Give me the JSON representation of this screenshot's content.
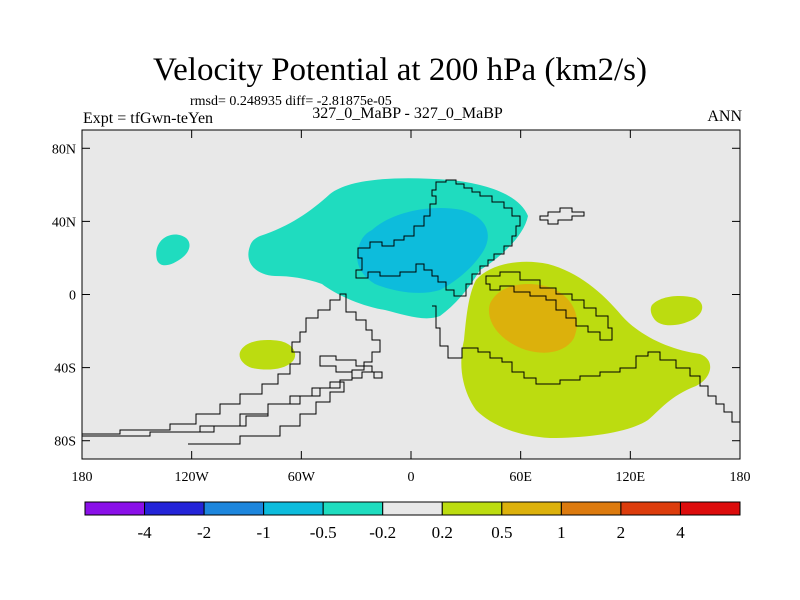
{
  "chart_data": {
    "type": "heatmap",
    "title": "Velocity Potential at 200 hPa (km2/s)",
    "stats": "rmsd= 0.248935 diff= -2.81875e-05",
    "experiment": "Expt = tfGwn-teYen",
    "comparison": "327_0_MaBP - 327_0_MaBP",
    "season": "ANN",
    "xlim": [
      -180,
      180
    ],
    "ylim": [
      -90,
      90
    ],
    "x_ticks": [
      "180",
      "120W",
      "60W",
      "0",
      "60E",
      "120E",
      "180"
    ],
    "y_ticks": [
      "80N",
      "40N",
      "0",
      "40S",
      "80S"
    ],
    "colorbar": {
      "levels": [
        "-4",
        "-2",
        "-1",
        "-0.5",
        "-0.2",
        "0.2",
        "0.5",
        "1",
        "2",
        "4"
      ],
      "colors": [
        "#8a10e8",
        "#2424d8",
        "#1d86dd",
        "#0dbcdc",
        "#1fdcbf",
        "#e8e8e8",
        "#bcdc10",
        "#dcb10c",
        "#dc7a0e",
        "#dc3c0c",
        "#dc0c0c"
      ]
    },
    "background_color": "#e8e8e8",
    "regions": [
      {
        "name": "negative-west-pacific",
        "band": "-0.5 to -0.2",
        "lon": 10,
        "lat": 35
      },
      {
        "name": "negative-core",
        "band": "-1 to -0.5",
        "lon": 10,
        "lat": 25
      },
      {
        "name": "negative-small-west",
        "band": "-0.5 to -0.2",
        "lon": -138,
        "lat": 25
      },
      {
        "name": "positive-indian-ocean",
        "band": "0.2 to 0.5",
        "lon": 70,
        "lat": -25
      },
      {
        "name": "positive-core",
        "band": "0.5 to 1",
        "lon": 65,
        "lat": -10
      },
      {
        "name": "positive-small-east",
        "band": "0.2 to 0.5",
        "lon": 145,
        "lat": -10
      },
      {
        "name": "positive-small-west",
        "band": "0.2 to 0.5",
        "lon": -75,
        "lat": -35
      }
    ]
  }
}
